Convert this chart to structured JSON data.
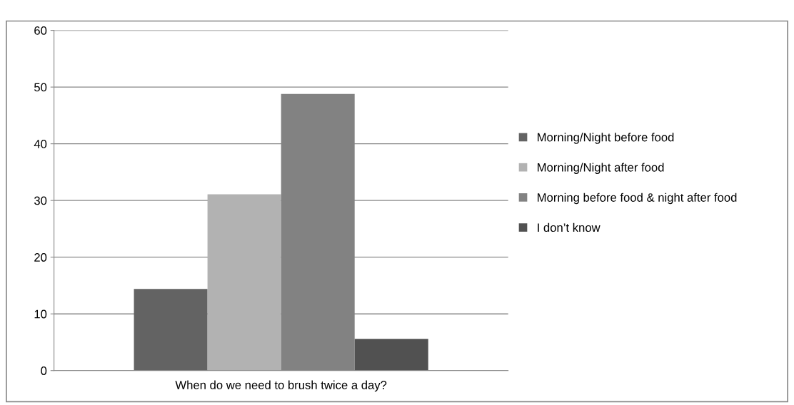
{
  "chart_data": {
    "type": "bar",
    "categories": [
      "When do we need to brush twice a day?"
    ],
    "series": [
      {
        "name": "Morning/Night before food",
        "color": "#636363",
        "values": [
          14.4
        ]
      },
      {
        "name": "Morning/Night after food",
        "color": "#b2b2b2",
        "values": [
          31.1
        ]
      },
      {
        "name": "Morning before food & night after food",
        "color": "#828282",
        "values": [
          48.8
        ]
      },
      {
        "name": "I don’t know",
        "color": "#515151",
        "values": [
          5.6
        ]
      }
    ],
    "ylim": [
      0,
      60
    ],
    "yticks": [
      0,
      10,
      20,
      30,
      40,
      50,
      60
    ],
    "grid": "y",
    "legend": "right"
  }
}
